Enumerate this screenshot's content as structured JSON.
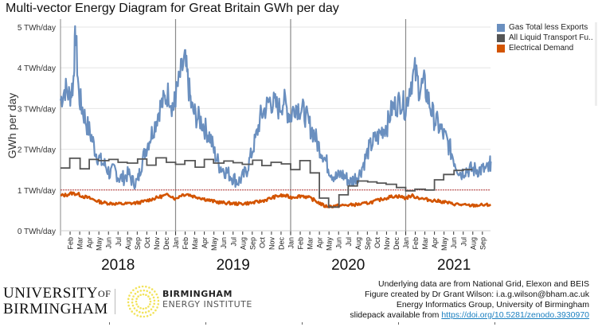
{
  "chart_data": {
    "type": "line",
    "title": "Multi-vector Energy Diagram for Great Britain GWh per day",
    "ylabel": "GWh per day",
    "xlabel": "",
    "ylim": [
      0,
      5
    ],
    "yticks": [
      {
        "value": 0,
        "label": "0 TWh/day"
      },
      {
        "value": 1,
        "label": "1 TWh/day"
      },
      {
        "value": 2,
        "label": "2 TWh/day"
      },
      {
        "value": 3,
        "label": "3 TWh/day"
      },
      {
        "value": 4,
        "label": "4 TWh/day"
      },
      {
        "value": 5,
        "label": "5 TWh/day"
      }
    ],
    "grid": true,
    "xrange_years": [
      2018.0,
      2021.75
    ],
    "year_labels": [
      {
        "label": "2018",
        "center": 2018.5
      },
      {
        "label": "2019",
        "center": 2019.5
      },
      {
        "label": "2020",
        "center": 2020.5
      },
      {
        "label": "2021",
        "center": 2021.42
      }
    ],
    "year_dividers": [
      2019,
      2020,
      2021
    ],
    "month_ticks": [
      "Feb",
      "Mar",
      "Apr",
      "May",
      "Jun",
      "Jul",
      "Aug",
      "Sep",
      "Oct",
      "Nov",
      "Dec",
      "Jan",
      "Feb",
      "Mar",
      "Apr",
      "May",
      "Jun",
      "Jul",
      "Aug",
      "Sep",
      "Oct",
      "Nov",
      "Dec",
      "Jan",
      "Feb",
      "Mar",
      "Apr",
      "May",
      "Jun",
      "Jul",
      "Aug",
      "Sep",
      "Oct",
      "Nov",
      "Dec",
      "Jan",
      "Feb",
      "Mar",
      "Apr",
      "May",
      "Jun",
      "Jul",
      "Aug",
      "Sep"
    ],
    "reference_line": {
      "value": 1.0,
      "color": "#b22222",
      "style": "dashed"
    },
    "legend_position": "right",
    "series": [
      {
        "name": "Gas Total less Exports",
        "color": "#6a8fbf",
        "x": [
          2018.0,
          2018.04,
          2018.08,
          2018.11,
          2018.13,
          2018.16,
          2018.19,
          2018.23,
          2018.27,
          2018.31,
          2018.35,
          2018.39,
          2018.43,
          2018.47,
          2018.51,
          2018.55,
          2018.59,
          2018.63,
          2018.67,
          2018.7,
          2018.74,
          2018.78,
          2018.82,
          2018.86,
          2018.9,
          2018.94,
          2018.98,
          2019.0,
          2019.04,
          2019.08,
          2019.11,
          2019.14,
          2019.18,
          2019.22,
          2019.26,
          2019.3,
          2019.34,
          2019.38,
          2019.42,
          2019.46,
          2019.5,
          2019.54,
          2019.58,
          2019.62,
          2019.66,
          2019.7,
          2019.74,
          2019.78,
          2019.82,
          2019.86,
          2019.9,
          2019.94,
          2019.98,
          2020.0,
          2020.04,
          2020.08,
          2020.12,
          2020.16,
          2020.2,
          2020.24,
          2020.28,
          2020.32,
          2020.36,
          2020.4,
          2020.44,
          2020.48,
          2020.52,
          2020.56,
          2020.6,
          2020.64,
          2020.68,
          2020.72,
          2020.76,
          2020.8,
          2020.84,
          2020.88,
          2020.92,
          2020.96,
          2021.0,
          2021.04,
          2021.08,
          2021.12,
          2021.16,
          2021.2,
          2021.24,
          2021.28,
          2021.32,
          2021.36,
          2021.4,
          2021.44,
          2021.48,
          2021.52,
          2021.56,
          2021.6,
          2021.64,
          2021.68,
          2021.72,
          2021.74
        ],
        "values": [
          3.2,
          3.5,
          3.3,
          3.6,
          4.9,
          3.3,
          3.0,
          2.6,
          2.3,
          1.9,
          1.7,
          1.6,
          1.4,
          1.5,
          1.3,
          1.3,
          1.4,
          1.2,
          1.2,
          1.6,
          2.0,
          2.3,
          2.6,
          3.0,
          3.2,
          3.4,
          3.0,
          3.3,
          3.8,
          4.2,
          3.6,
          3.0,
          2.8,
          2.7,
          2.5,
          2.3,
          1.9,
          1.6,
          1.5,
          1.4,
          1.3,
          1.2,
          1.3,
          1.5,
          1.9,
          2.3,
          2.8,
          3.0,
          3.2,
          3.1,
          3.0,
          3.2,
          2.9,
          2.8,
          3.1,
          3.0,
          2.9,
          2.6,
          2.4,
          2.1,
          1.9,
          1.6,
          1.4,
          1.3,
          1.4,
          1.3,
          1.2,
          1.3,
          1.4,
          1.7,
          2.0,
          2.2,
          2.3,
          2.5,
          2.6,
          3.0,
          3.1,
          3.2,
          3.0,
          3.6,
          3.9,
          3.5,
          3.6,
          3.2,
          2.8,
          2.6,
          2.4,
          2.2,
          1.9,
          1.6,
          1.4,
          1.5,
          1.5,
          1.5,
          1.5,
          1.5,
          1.5,
          1.7
        ]
      },
      {
        "name": "All Liquid Transport Fu..",
        "color": "#555555",
        "steps": [
          {
            "x": 2018.0,
            "value": 1.54
          },
          {
            "x": 2018.08,
            "value": 1.78
          },
          {
            "x": 2018.17,
            "value": 1.52
          },
          {
            "x": 2018.25,
            "value": 1.75
          },
          {
            "x": 2018.33,
            "value": 1.72
          },
          {
            "x": 2018.42,
            "value": 1.75
          },
          {
            "x": 2018.5,
            "value": 1.68
          },
          {
            "x": 2018.58,
            "value": 1.66
          },
          {
            "x": 2018.67,
            "value": 1.76
          },
          {
            "x": 2018.75,
            "value": 1.61
          },
          {
            "x": 2018.83,
            "value": 1.79
          },
          {
            "x": 2018.92,
            "value": 1.68
          },
          {
            "x": 2019.0,
            "value": 1.63
          },
          {
            "x": 2019.08,
            "value": 1.72
          },
          {
            "x": 2019.17,
            "value": 1.56
          },
          {
            "x": 2019.25,
            "value": 1.75
          },
          {
            "x": 2019.33,
            "value": 1.66
          },
          {
            "x": 2019.42,
            "value": 1.71
          },
          {
            "x": 2019.5,
            "value": 1.67
          },
          {
            "x": 2019.58,
            "value": 1.63
          },
          {
            "x": 2019.67,
            "value": 1.73
          },
          {
            "x": 2019.75,
            "value": 1.6
          },
          {
            "x": 2019.83,
            "value": 1.68
          },
          {
            "x": 2019.92,
            "value": 1.64
          },
          {
            "x": 2020.0,
            "value": 1.5
          },
          {
            "x": 2020.08,
            "value": 1.72
          },
          {
            "x": 2020.17,
            "value": 1.42
          },
          {
            "x": 2020.25,
            "value": 0.8
          },
          {
            "x": 2020.33,
            "value": 0.58
          },
          {
            "x": 2020.42,
            "value": 0.88
          },
          {
            "x": 2020.5,
            "value": 1.1
          },
          {
            "x": 2020.58,
            "value": 1.22
          },
          {
            "x": 2020.67,
            "value": 1.2
          },
          {
            "x": 2020.75,
            "value": 1.17
          },
          {
            "x": 2020.83,
            "value": 1.14
          },
          {
            "x": 2020.92,
            "value": 1.06
          },
          {
            "x": 2021.0,
            "value": 0.98
          },
          {
            "x": 2021.08,
            "value": 1.02
          },
          {
            "x": 2021.17,
            "value": 1.0
          },
          {
            "x": 2021.25,
            "value": 1.25
          },
          {
            "x": 2021.33,
            "value": 1.38
          },
          {
            "x": 2021.42,
            "value": 1.48
          },
          {
            "x": 2021.5,
            "value": 1.5
          }
        ],
        "end_x": 2021.58
      },
      {
        "name": "Electrical Demand",
        "color": "#d35400",
        "x": [
          2018.0,
          2018.05,
          2018.1,
          2018.15,
          2018.2,
          2018.25,
          2018.3,
          2018.35,
          2018.4,
          2018.45,
          2018.5,
          2018.55,
          2018.6,
          2018.65,
          2018.7,
          2018.75,
          2018.8,
          2018.85,
          2018.9,
          2018.95,
          2019.0,
          2019.05,
          2019.1,
          2019.15,
          2019.2,
          2019.25,
          2019.3,
          2019.35,
          2019.4,
          2019.45,
          2019.5,
          2019.55,
          2019.6,
          2019.65,
          2019.7,
          2019.75,
          2019.8,
          2019.85,
          2019.9,
          2019.95,
          2020.0,
          2020.05,
          2020.1,
          2020.15,
          2020.2,
          2020.25,
          2020.3,
          2020.35,
          2020.4,
          2020.45,
          2020.5,
          2020.55,
          2020.6,
          2020.65,
          2020.7,
          2020.75,
          2020.8,
          2020.85,
          2020.9,
          2020.95,
          2021.0,
          2021.05,
          2021.1,
          2021.15,
          2021.2,
          2021.25,
          2021.3,
          2021.35,
          2021.4,
          2021.45,
          2021.5,
          2021.55,
          2021.6,
          2021.65,
          2021.7,
          2021.74
        ],
        "values": [
          0.86,
          0.88,
          0.92,
          0.9,
          0.84,
          0.8,
          0.75,
          0.7,
          0.68,
          0.67,
          0.66,
          0.66,
          0.67,
          0.68,
          0.7,
          0.74,
          0.78,
          0.82,
          0.86,
          0.88,
          0.78,
          0.88,
          0.9,
          0.85,
          0.82,
          0.78,
          0.74,
          0.71,
          0.69,
          0.68,
          0.67,
          0.66,
          0.67,
          0.68,
          0.7,
          0.73,
          0.77,
          0.82,
          0.86,
          0.86,
          0.82,
          0.84,
          0.86,
          0.82,
          0.76,
          0.68,
          0.6,
          0.6,
          0.61,
          0.62,
          0.63,
          0.64,
          0.65,
          0.67,
          0.7,
          0.74,
          0.78,
          0.82,
          0.85,
          0.84,
          0.8,
          0.86,
          0.82,
          0.78,
          0.76,
          0.74,
          0.72,
          0.7,
          0.66,
          0.65,
          0.63,
          0.62,
          0.62,
          0.63,
          0.63,
          0.64
        ]
      }
    ]
  },
  "title": "Multi-vector Energy Diagram for Great Britain GWh per day",
  "legend": [
    {
      "label": "Gas Total less Exports",
      "color": "#6a8fbf"
    },
    {
      "label": "All Liquid Transport Fu..",
      "color": "#555555"
    },
    {
      "label": "Electrical Demand",
      "color": "#d35400"
    }
  ],
  "logos": {
    "uob_line1": "UNIVERSITY",
    "uob_of": "OF",
    "uob_line2": "BIRMINGHAM",
    "bei_line1": "BIRMINGHAM",
    "bei_line2": "ENERGY INSTITUTE",
    "bei_color": "#f2e35b"
  },
  "footer": {
    "line1": "Underlying data are from National Grid, Elexon and BEIS",
    "line2": "Figure created by Dr Grant Wilson: i.a.g.wilson@bham.ac.uk",
    "line3": "Energy Informatics Group, University of Birmingham",
    "line4_prefix": "slidepack available from ",
    "link": "https://doi.org/10.5281/zenodo.3930970"
  }
}
